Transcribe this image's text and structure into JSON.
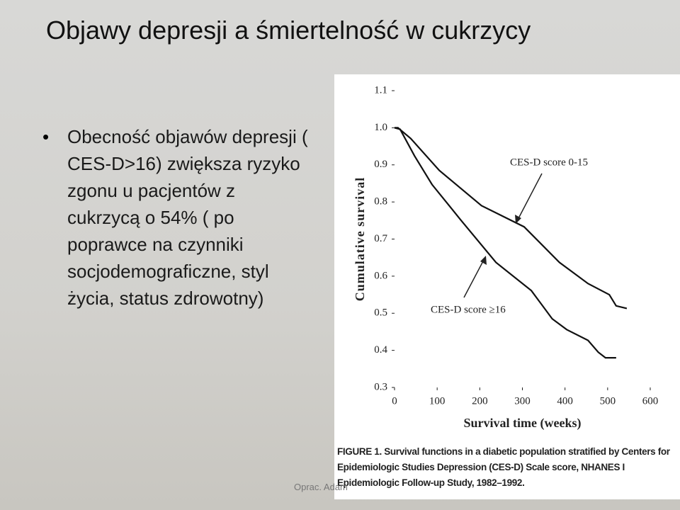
{
  "title": "Objawy depresji a śmiertelność w cukrzycy",
  "bullet": "Obecność objawów depresji ( CES-D>16) zwiększa ryzyko zgonu u pacjentów z cukrzycą o 54% ( po poprawce  na czynniki socjodemograficzne, styl życia, status zdrowotny)",
  "caption": "FIGURE 1. Survival functions in a diabetic population stratified by Centers for Epidemiologic Studies Depression (CES-D) Scale score, NHANES I Epidemiologic Follow-up Study, 1982–1992.",
  "footer": "Oprac. Adam",
  "chart_data": {
    "type": "line",
    "xlabel": "Survival time (weeks)",
    "ylabel": "Cumulative survival",
    "xlim": [
      0,
      600
    ],
    "xticks": [
      0,
      100,
      200,
      300,
      400,
      500,
      600
    ],
    "ylim": [
      0.3,
      1.1
    ],
    "yticks": [
      0.3,
      0.4,
      0.5,
      0.6,
      0.7,
      0.8,
      0.9,
      {
        "value": 1,
        "label": "1.0"
      },
      1.1
    ],
    "series": [
      {
        "name": "CES-D score 0-15",
        "color": "#111111",
        "x": [
          0,
          8,
          38,
          105,
          204,
          304,
          387,
          454,
          504,
          520,
          545
        ],
        "values": [
          1.0,
          1.0,
          0.971,
          0.885,
          0.79,
          0.733,
          0.637,
          0.58,
          0.55,
          0.52,
          0.513
        ]
      },
      {
        "name": "CES-D score ≥16",
        "color": "#111111",
        "x": [
          0,
          13,
          47,
          88,
          155,
          238,
          321,
          370,
          404,
          454,
          478,
          495,
          520
        ],
        "values": [
          1.0,
          0.996,
          0.924,
          0.847,
          0.752,
          0.637,
          0.561,
          0.485,
          0.456,
          0.427,
          0.395,
          0.38,
          0.38
        ]
      }
    ]
  }
}
